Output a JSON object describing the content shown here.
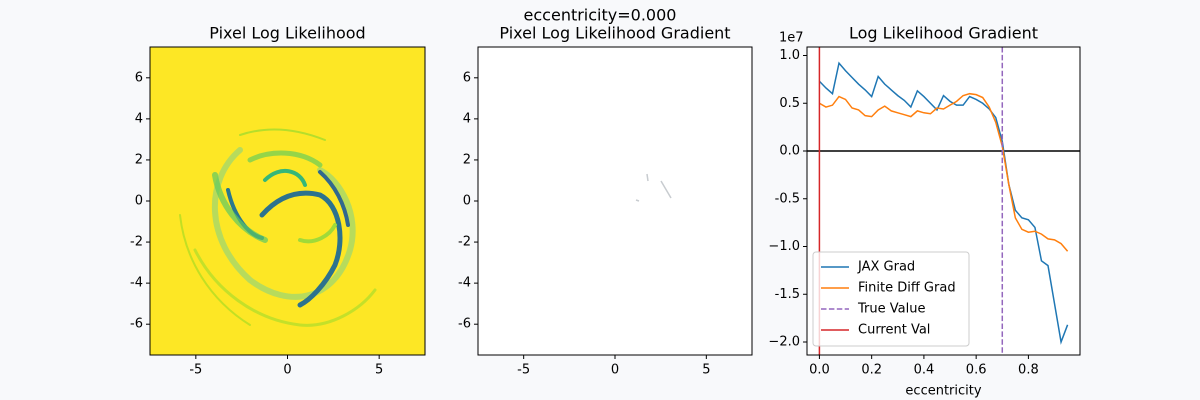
{
  "title": "eccentricity=0.000",
  "chart_data": [
    {
      "type": "heatmap",
      "title": "Pixel Log Likelihood",
      "xlim": [
        -7.5,
        7.5
      ],
      "xticks": [
        -5,
        0,
        5
      ],
      "ylim": [
        -7.5,
        7.5
      ],
      "yticks": [
        -6,
        -4,
        -2,
        0,
        2,
        4,
        6
      ],
      "background_color": "#fde725"
    },
    {
      "type": "heatmap",
      "title": "Pixel Log Likelihood Gradient",
      "xlim": [
        -7.5,
        7.5
      ],
      "xticks": [
        -5,
        0,
        5
      ],
      "ylim": [
        -7.5,
        7.5
      ],
      "yticks": [
        -6,
        -4,
        -2,
        0,
        2,
        4,
        6
      ],
      "background_color": "#ffffff"
    },
    {
      "type": "line",
      "title": "Log Likelihood Gradient",
      "xlabel": "eccentricity",
      "y_offset_label": "1e7",
      "x": [
        0,
        0.025,
        0.05,
        0.075,
        0.1,
        0.125,
        0.15,
        0.175,
        0.2,
        0.225,
        0.25,
        0.275,
        0.3,
        0.325,
        0.35,
        0.375,
        0.4,
        0.425,
        0.45,
        0.475,
        0.5,
        0.525,
        0.55,
        0.575,
        0.6,
        0.625,
        0.65,
        0.675,
        0.7,
        0.725,
        0.75,
        0.775,
        0.8,
        0.825,
        0.85,
        0.875,
        0.9,
        0.925,
        0.95
      ],
      "series": [
        {
          "name": "JAX Grad",
          "color": "#1f77b4",
          "values": [
            0.73,
            0.66,
            0.6,
            0.92,
            0.84,
            0.77,
            0.7,
            0.64,
            0.57,
            0.78,
            0.7,
            0.64,
            0.58,
            0.53,
            0.46,
            0.63,
            0.57,
            0.5,
            0.43,
            0.58,
            0.52,
            0.48,
            0.48,
            0.57,
            0.54,
            0.5,
            0.44,
            0.35,
            0.1,
            -0.35,
            -0.62,
            -0.7,
            -0.72,
            -0.8,
            -1.15,
            -1.2,
            -1.6,
            -2.0,
            -1.82
          ]
        },
        {
          "name": "Finite Diff Grad",
          "color": "#ff7f0e",
          "values": [
            0.5,
            0.46,
            0.48,
            0.57,
            0.54,
            0.45,
            0.43,
            0.37,
            0.36,
            0.43,
            0.47,
            0.42,
            0.4,
            0.38,
            0.36,
            0.42,
            0.4,
            0.39,
            0.45,
            0.44,
            0.48,
            0.52,
            0.58,
            0.6,
            0.59,
            0.56,
            0.46,
            0.3,
            0.05,
            -0.35,
            -0.7,
            -0.82,
            -0.85,
            -0.84,
            -0.87,
            -0.92,
            -0.93,
            -0.97,
            -1.05
          ]
        }
      ],
      "vlines": [
        {
          "name": "True Value",
          "x": 0.7,
          "color": "#9467bd",
          "dashed": true
        },
        {
          "name": "Current Val",
          "x": 0,
          "color": "#d62728",
          "dashed": false
        }
      ],
      "hlines": [
        {
          "y": 0,
          "color": "#000000"
        }
      ],
      "xlim": [
        -0.0475,
        0.9975
      ],
      "xticks": [
        {
          "value": 0,
          "label": "0.0"
        },
        0.2,
        0.4,
        0.6,
        0.8
      ],
      "ylim": [
        -2.136,
        1.089
      ],
      "yticks": [
        {
          "value": -2,
          "label": "−2.0"
        },
        -1.5,
        {
          "value": -1,
          "label": "−1.0"
        },
        -0.5,
        {
          "value": 0,
          "label": "0.0"
        },
        0.5,
        {
          "value": 1,
          "label": "1.0"
        }
      ],
      "legend": "lower left"
    }
  ]
}
